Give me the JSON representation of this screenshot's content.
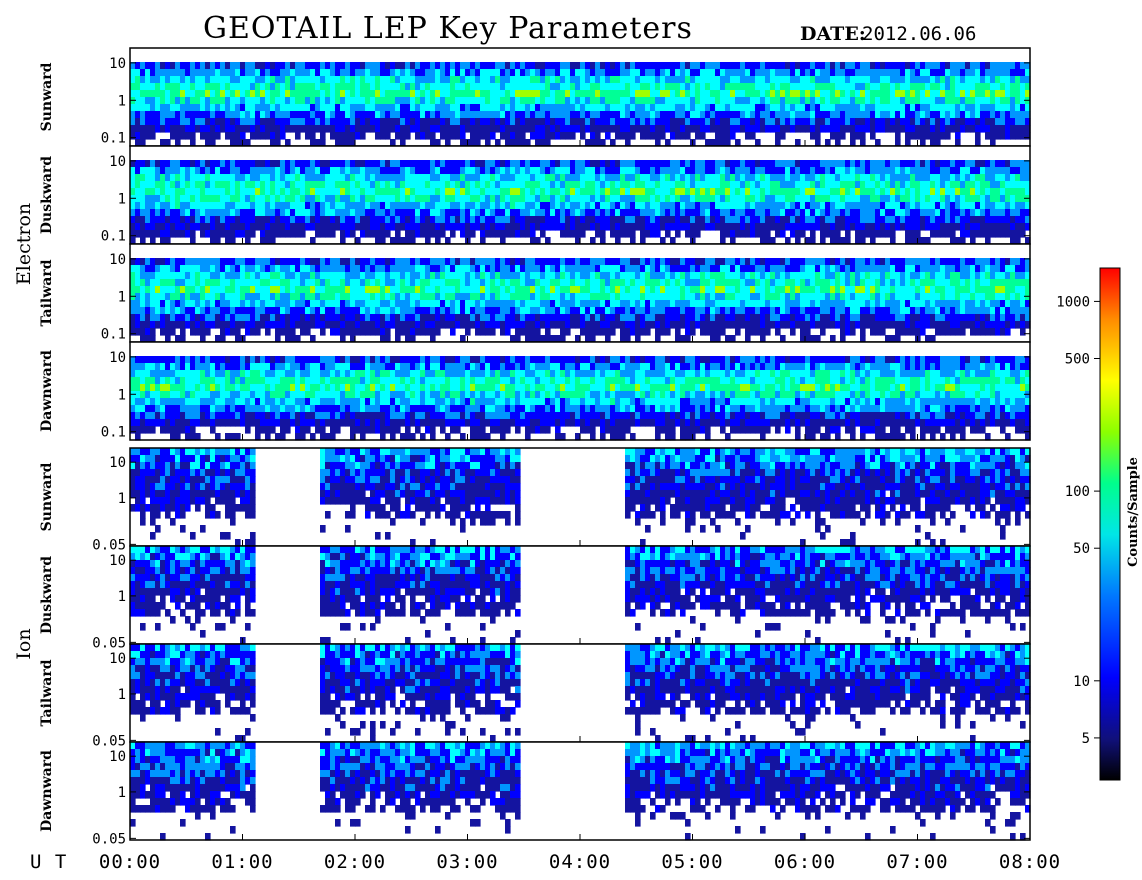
{
  "title": "GEOTAIL LEP Key Parameters",
  "date_label": "DATE:",
  "date_value": "2012.06.06",
  "ut_label": "U T",
  "colorbar": {
    "label": "Counts/Sample",
    "ticks": [
      "1000",
      "500",
      "100",
      "50",
      "10",
      "5"
    ],
    "tick_values": [
      1000,
      500,
      100,
      50,
      10,
      5
    ],
    "range": [
      3,
      1500
    ],
    "scale": "log",
    "colormap": [
      "#000000",
      "#1414a0",
      "#0000ff",
      "#0096ff",
      "#00ffff",
      "#00ff96",
      "#a0ff00",
      "#ffff00",
      "#ff8c00",
      "#ff0000"
    ]
  },
  "chart_data": {
    "type": "heatmap",
    "title": "GEOTAIL LEP Key Parameters",
    "date": "2012.06.06",
    "x_axis": {
      "label": "U T",
      "ticks": [
        "00:00",
        "01:00",
        "02:00",
        "03:00",
        "04:00",
        "05:00",
        "06:00",
        "07:00",
        "08:00"
      ],
      "range_hours": [
        0,
        8
      ]
    },
    "groups": [
      {
        "name": "Electron",
        "y_scale": "log",
        "y_ticks": [
          "10",
          "1",
          "0.1"
        ],
        "y_tick_values": [
          10,
          1,
          0.1
        ],
        "y_range": [
          0.06,
          25
        ],
        "panels": [
          {
            "name": "Sunward"
          },
          {
            "name": "Duskward"
          },
          {
            "name": "Tailward"
          },
          {
            "name": "Dawnward"
          }
        ]
      },
      {
        "name": "Ion",
        "y_scale": "log",
        "y_ticks": [
          "10",
          "1",
          "0.05"
        ],
        "y_tick_values": [
          10,
          1,
          0.05
        ],
        "y_range": [
          0.045,
          25
        ],
        "panels": [
          {
            "name": "Sunward"
          },
          {
            "name": "Duskward"
          },
          {
            "name": "Tailward"
          },
          {
            "name": "Dawnward"
          }
        ]
      }
    ],
    "data_gaps_hours": {
      "Ion": [
        [
          1.1,
          1.7
        ],
        [
          3.45,
          4.4
        ]
      ]
    }
  }
}
